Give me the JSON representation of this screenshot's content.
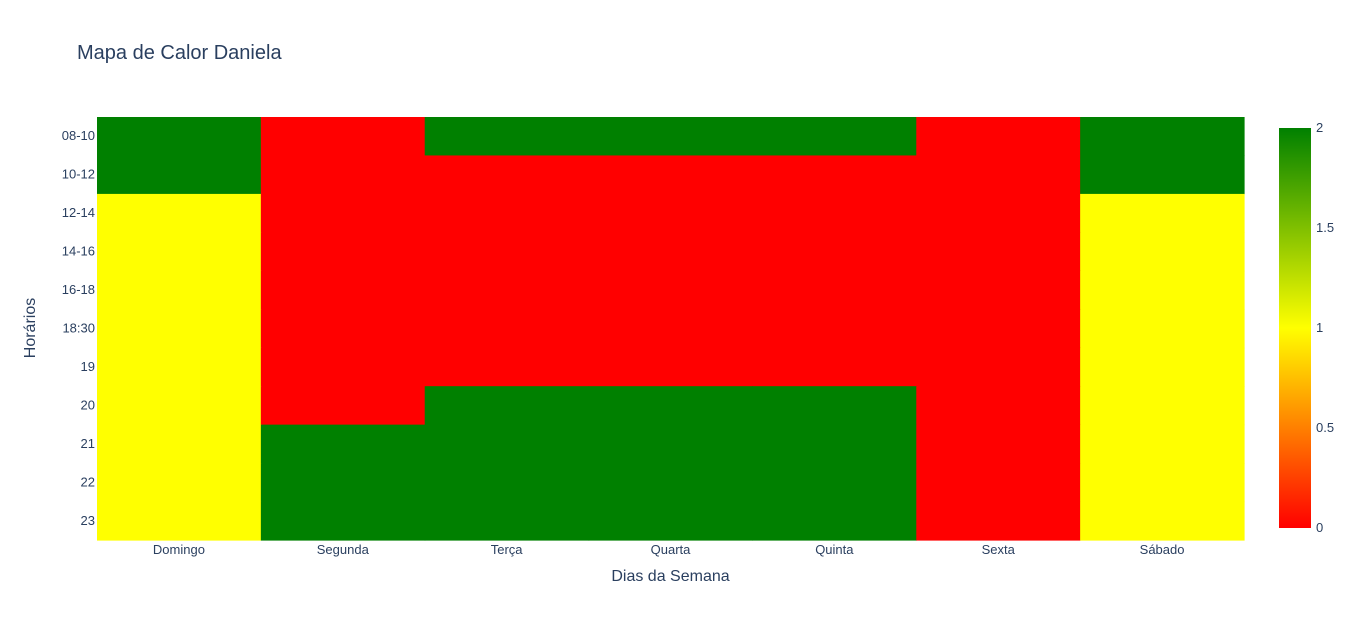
{
  "chart_data": {
    "type": "heatmap",
    "title": "Mapa de Calor Daniela",
    "xlabel": "Dias da Semana",
    "ylabel": "Horários",
    "x": [
      "Domingo",
      "Segunda",
      "Terça",
      "Quarta",
      "Quinta",
      "Sexta",
      "Sábado"
    ],
    "y": [
      "08-10",
      "10-12",
      "12-14",
      "14-16",
      "16-18",
      "18:30",
      "19",
      "20",
      "21",
      "22",
      "23"
    ],
    "z": [
      [
        2,
        0,
        2,
        2,
        2,
        0,
        2
      ],
      [
        2,
        0,
        0,
        0,
        0,
        0,
        2
      ],
      [
        1,
        0,
        0,
        0,
        0,
        0,
        1
      ],
      [
        1,
        0,
        0,
        0,
        0,
        0,
        1
      ],
      [
        1,
        0,
        0,
        0,
        0,
        0,
        1
      ],
      [
        1,
        0,
        0,
        0,
        0,
        0,
        1
      ],
      [
        1,
        0,
        0,
        0,
        0,
        0,
        1
      ],
      [
        1,
        0,
        2,
        2,
        2,
        0,
        1
      ],
      [
        1,
        2,
        2,
        2,
        2,
        0,
        1
      ],
      [
        1,
        2,
        2,
        2,
        2,
        0,
        1
      ],
      [
        1,
        2,
        2,
        2,
        2,
        0,
        1
      ]
    ],
    "zrange": [
      0,
      2
    ],
    "colorscale": [
      [
        0,
        "#ff0000"
      ],
      [
        0.5,
        "#ffff00"
      ],
      [
        1,
        "#008000"
      ]
    ],
    "colorbar_ticks": [
      {
        "value": 0,
        "label": "0"
      },
      {
        "value": 0.5,
        "label": "0.5"
      },
      {
        "value": 1,
        "label": "1"
      },
      {
        "value": 1.5,
        "label": "1.5"
      },
      {
        "value": 2,
        "label": "2"
      }
    ]
  }
}
